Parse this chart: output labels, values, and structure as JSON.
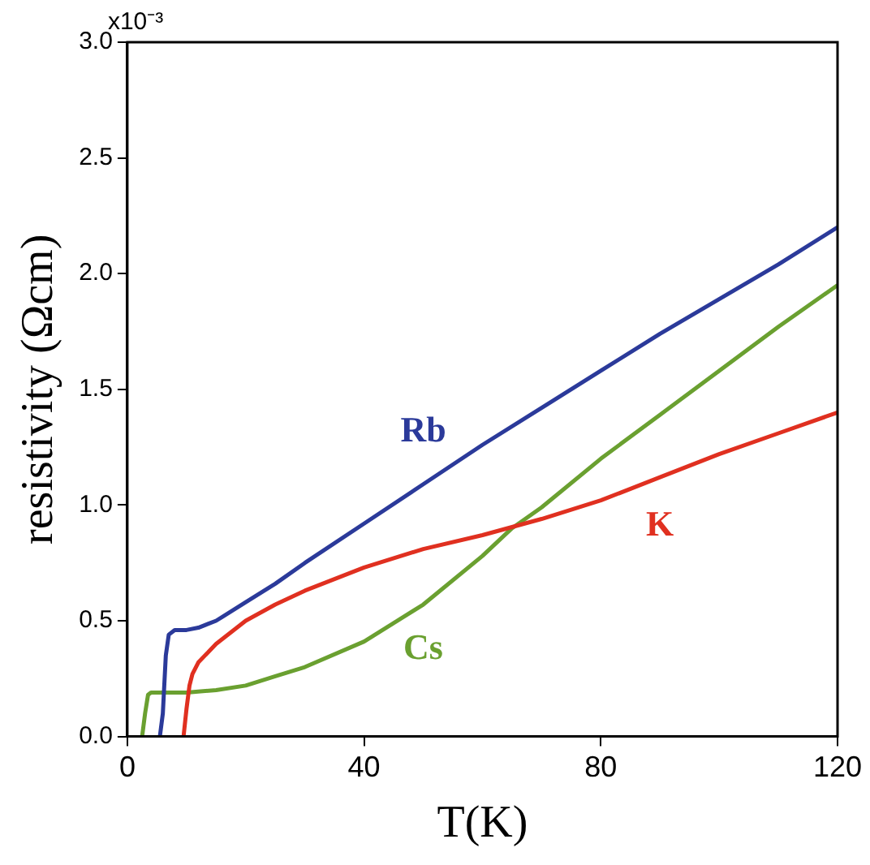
{
  "chart_data": {
    "type": "line",
    "xlabel": "T(K)",
    "ylabel": "resistivity (Ωcm)",
    "xlim": [
      0,
      120
    ],
    "xticks": [
      0,
      40,
      80,
      120
    ],
    "ylim": [
      0,
      3
    ],
    "yticks": [
      {
        "value": 0,
        "label": "0.0"
      },
      {
        "value": 0.5,
        "label": "0.5"
      },
      {
        "value": 1,
        "label": "1.0"
      },
      {
        "value": 1.5,
        "label": "1.5"
      },
      {
        "value": 2,
        "label": "2.0"
      },
      {
        "value": 2.5,
        "label": "2.5"
      },
      {
        "value": 3,
        "label": "3.0"
      }
    ],
    "annotations": [
      "x10⁻³"
    ],
    "marker": "none",
    "line_style": "solid",
    "series": [
      {
        "name": "Rb",
        "color": "#2b3a9a",
        "x": [
          5.5,
          6,
          6.5,
          7,
          8,
          10,
          12,
          15,
          20,
          25,
          30,
          40,
          50,
          60,
          70,
          80,
          90,
          100,
          110,
          120
        ],
        "values": [
          0,
          0.1,
          0.35,
          0.44,
          0.46,
          0.46,
          0.47,
          0.5,
          0.58,
          0.66,
          0.75,
          0.92,
          1.09,
          1.26,
          1.42,
          1.58,
          1.74,
          1.89,
          2.04,
          2.2
        ]
      },
      {
        "name": "K",
        "color": "#e03020",
        "x": [
          9.5,
          10,
          10.5,
          11,
          12,
          15,
          20,
          25,
          30,
          40,
          50,
          60,
          70,
          80,
          90,
          100,
          110,
          120
        ],
        "values": [
          0,
          0.12,
          0.22,
          0.27,
          0.32,
          0.4,
          0.5,
          0.57,
          0.63,
          0.73,
          0.81,
          0.87,
          0.94,
          1.02,
          1.12,
          1.22,
          1.31,
          1.4
        ]
      },
      {
        "name": "Cs",
        "color": "#6aa030",
        "x": [
          2.5,
          3,
          3.5,
          4,
          6,
          10,
          15,
          20,
          25,
          30,
          40,
          50,
          60,
          65,
          70,
          80,
          90,
          100,
          110,
          120
        ],
        "values": [
          0,
          0.1,
          0.18,
          0.19,
          0.19,
          0.19,
          0.2,
          0.22,
          0.26,
          0.3,
          0.41,
          0.57,
          0.78,
          0.9,
          0.99,
          1.2,
          1.39,
          1.58,
          1.77,
          1.95
        ]
      }
    ]
  }
}
